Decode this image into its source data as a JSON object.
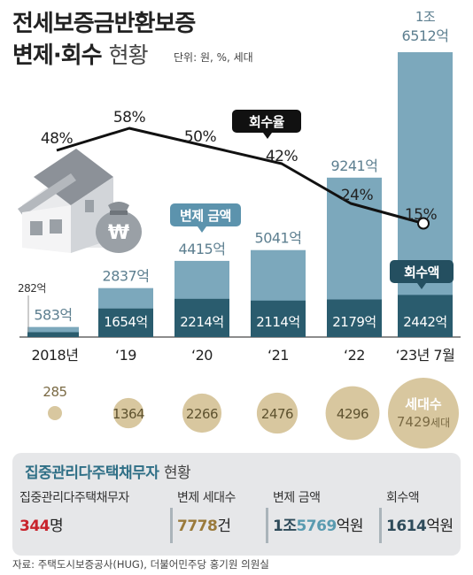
{
  "title_line1": "전세보증금반환보증",
  "title_line2_bold": "변제·회수",
  "title_line2_light": "현황",
  "unit": "단위: 원, %, 세대",
  "callouts": {
    "repay_amount": "변제 금액",
    "recovery_rate": "회수율",
    "recovery_amount": "회수액"
  },
  "chart_data": {
    "type": "bar",
    "categories": [
      "2018년",
      "‘19",
      "‘20",
      "‘21",
      "‘22",
      "‘23년 7월"
    ],
    "repay_labels": [
      "583억",
      "2837억",
      "4415억",
      "5041억",
      "9241억",
      "1조\n6512억"
    ],
    "repay_values": [
      583,
      2837,
      4415,
      5041,
      9241,
      16512
    ],
    "recovery_labels": [
      "282억",
      "1654억",
      "2214억",
      "2114억",
      "2179억",
      "2442억"
    ],
    "recovery_values": [
      282,
      1654,
      2214,
      2114,
      2179,
      2442
    ],
    "rate_labels": [
      "48%",
      "58%",
      "50%",
      "42%",
      "24%",
      "15%"
    ],
    "rate_values": [
      48,
      58,
      50,
      42,
      24,
      15
    ],
    "households": [
      285,
      1364,
      2266,
      2476,
      4296,
      7429
    ],
    "households_last_label_top": "세대수",
    "households_last_label_num": "7429",
    "households_last_label_unit": "세대",
    "colors": {
      "repay": "#7ca8bc",
      "recovery": "#2a5c6e",
      "rate_line": "#111111",
      "bubble": "#d8c79f",
      "callout_blue": "#5c93ad",
      "callout_dark": "#244f60"
    }
  },
  "table": {
    "title_bold": "집중관리다주택채무자",
    "title_light": "현황",
    "columns": [
      {
        "label": "집중관리다주택채무자",
        "num": "344",
        "suffix": "명"
      },
      {
        "label": "변제 세대수",
        "num": "7778",
        "suffix": "건"
      },
      {
        "label": "변제 금액",
        "num_prefix": "1조",
        "num": "5769",
        "suffix": "억원"
      },
      {
        "label": "회수액",
        "num": "1614",
        "suffix": "억원"
      }
    ]
  },
  "source": "자료: 주택도시보증공사(HUG), 더불어민주당 홍기원 의원실"
}
